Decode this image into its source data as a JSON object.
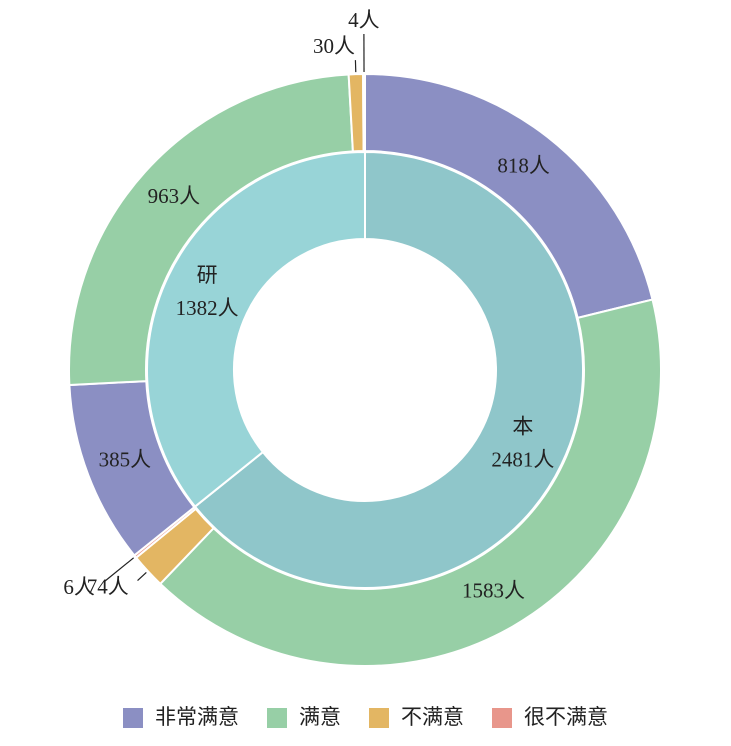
{
  "chart_data": {
    "type": "nested-donut",
    "categories": [
      "本",
      "研"
    ],
    "values": [
      2481,
      1382
    ],
    "value_labels": [
      "2481人",
      "1382人"
    ],
    "colors": [
      "#8fc6ca",
      "#98d4d7"
    ],
    "series": [
      {
        "name": "非常满意",
        "color": "#8b8fc3",
        "values": [
          818,
          385
        ],
        "value_labels": [
          "818人",
          "385人"
        ]
      },
      {
        "name": "满意",
        "color": "#97cfa6",
        "values": [
          1583,
          963
        ],
        "value_labels": [
          "1583人",
          "963人"
        ]
      },
      {
        "name": "不满意",
        "color": "#e3b663",
        "values": [
          74,
          30
        ],
        "value_labels": [
          "74人",
          "30人"
        ]
      },
      {
        "name": "很不满意",
        "color": "#e8968b",
        "values": [
          6,
          4
        ],
        "value_labels": [
          "6人",
          "4人"
        ]
      }
    ],
    "legend": "bottom"
  }
}
